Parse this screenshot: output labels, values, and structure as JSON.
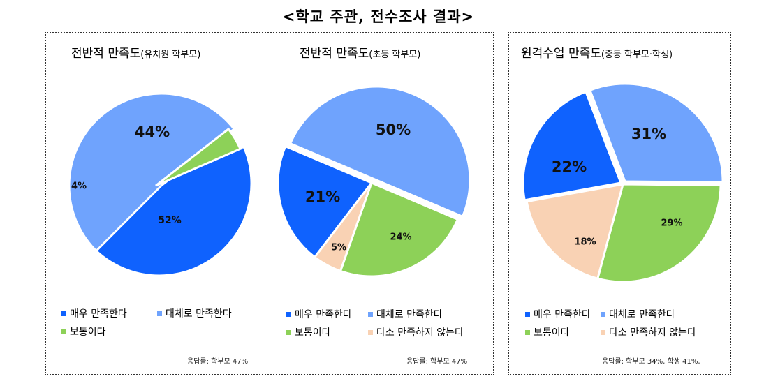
{
  "title": "<학교 주관, 전수조사 결과>",
  "colors": {
    "매우 만족한다": "#0f62fe",
    "대체로 만족한다": "#6fa3fd",
    "보통이다": "#8dd158",
    "다소 만족하지 않는다": "#f9d2b4"
  },
  "chart_data": [
    {
      "type": "pie",
      "title": "전반적 만족도",
      "subtitle": "(유치원 학부모)",
      "slices": [
        {
          "label": "매우 만족한다",
          "value": 44,
          "text": "44%"
        },
        {
          "label": "대체로 만족한다",
          "value": 52,
          "text": "52%"
        },
        {
          "label": "보통이다",
          "value": 4,
          "text": "4%"
        }
      ],
      "legend": [
        "매우 만족한다",
        "대체로 만족한다",
        "보통이다"
      ],
      "note": "응답률: 학부모 47%"
    },
    {
      "type": "pie",
      "title": "전반적 만족도",
      "subtitle": "(초등 학부모)",
      "slices": [
        {
          "label": "대체로 만족한다",
          "value": 50,
          "text": "50%"
        },
        {
          "label": "보통이다",
          "value": 24,
          "text": "24%"
        },
        {
          "label": "다소 만족하지 않는다",
          "value": 5,
          "text": "5%"
        },
        {
          "label": "매우 만족한다",
          "value": 21,
          "text": "21%"
        }
      ],
      "legend": [
        "매우 만족한다",
        "대체로 만족한다",
        "보통이다",
        "다소 만족하지 않는다"
      ],
      "note": "응답률: 학부모 47%"
    },
    {
      "type": "pie",
      "title": "원격수업 만족도",
      "subtitle": "(중등 학부모·학생)",
      "slices": [
        {
          "label": "대체로 만족한다",
          "value": 31,
          "text": "31%"
        },
        {
          "label": "보통이다",
          "value": 29,
          "text": "29%"
        },
        {
          "label": "다소 만족하지 않는다",
          "value": 18,
          "text": "18%"
        },
        {
          "label": "매우 만족한다",
          "value": 22,
          "text": "22%"
        }
      ],
      "legend": [
        "매우 만족한다",
        "대체로 만족한다",
        "보통이다",
        "다소 만족하지 않는다"
      ],
      "note": "응답률: 학부모 34%, 학생 41%,"
    }
  ]
}
